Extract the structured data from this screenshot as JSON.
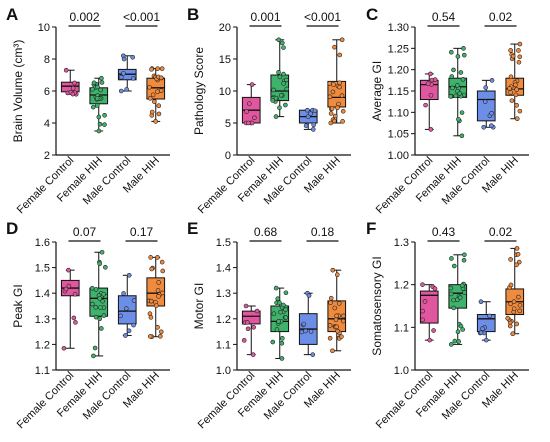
{
  "colors": {
    "female_control": "#e0579f",
    "female_hih": "#3fb26b",
    "male_control": "#6d8ee6",
    "male_hih": "#f08a3c"
  },
  "chart_data": [
    {
      "type": "box",
      "panel": "A",
      "ylabel": "Brain Volume (cm³)",
      "ylim": [
        2,
        10
      ],
      "yticks": [
        "2",
        "4",
        "6",
        "8",
        "10"
      ],
      "yticks_values": [
        2,
        4,
        6,
        8,
        10
      ],
      "categories": [
        "Female Control",
        "Female HIH",
        "Male Control",
        "Male HIH"
      ],
      "boxes": [
        {
          "min": 5.8,
          "q1": 5.95,
          "median": 6.3,
          "q3": 6.55,
          "max": 7.3
        },
        {
          "min": 3.5,
          "q1": 5.2,
          "median": 5.75,
          "q3": 6.2,
          "max": 6.8
        },
        {
          "min": 6.0,
          "q1": 6.7,
          "median": 7.05,
          "q3": 7.35,
          "max": 8.2
        },
        {
          "min": 4.1,
          "q1": 5.5,
          "median": 6.2,
          "q3": 6.8,
          "max": 7.4
        }
      ],
      "annotations": [
        {
          "text": "0.002",
          "between": [
            0,
            1
          ]
        },
        {
          "text": "<0.001",
          "between": [
            2,
            3
          ]
        }
      ]
    },
    {
      "type": "box",
      "panel": "B",
      "ylabel": "Pathology Score",
      "ylim": [
        0,
        20
      ],
      "yticks": [
        "0",
        "5",
        "10",
        "15",
        "20"
      ],
      "yticks_values": [
        0,
        5,
        10,
        15,
        20
      ],
      "categories": [
        "Female Control",
        "Female HIH",
        "Male Control",
        "Male HIH"
      ],
      "boxes": [
        {
          "min": 5,
          "q1": 5,
          "median": 7,
          "q3": 9,
          "max": 11
        },
        {
          "min": 6,
          "q1": 8.5,
          "median": 10,
          "q3": 12.5,
          "max": 18
        },
        {
          "min": 4,
          "q1": 5,
          "median": 6,
          "q3": 7,
          "max": 7
        },
        {
          "min": 5,
          "q1": 7.5,
          "median": 9,
          "q3": 11.5,
          "max": 18
        }
      ],
      "annotations": [
        {
          "text": "0.001",
          "between": [
            0,
            1
          ]
        },
        {
          "text": "<0.001",
          "between": [
            2,
            3
          ]
        }
      ]
    },
    {
      "type": "box",
      "panel": "C",
      "ylabel": "Average GI",
      "ylim": [
        1.0,
        1.3
      ],
      "yticks": [
        "1.00",
        "1.05",
        "1.10",
        "1.15",
        "1.20",
        "1.25",
        "1.30"
      ],
      "yticks_values": [
        1.0,
        1.05,
        1.1,
        1.15,
        1.2,
        1.25,
        1.3
      ],
      "categories": [
        "Female Control",
        "Female HIH",
        "Male Control",
        "Male HIH"
      ],
      "boxes": [
        {
          "min": 1.06,
          "q1": 1.13,
          "median": 1.165,
          "q3": 1.175,
          "max": 1.19
        },
        {
          "min": 1.045,
          "q1": 1.135,
          "median": 1.16,
          "q3": 1.18,
          "max": 1.25
        },
        {
          "min": 1.065,
          "q1": 1.08,
          "median": 1.13,
          "q3": 1.15,
          "max": 1.175
        },
        {
          "min": 1.085,
          "q1": 1.14,
          "median": 1.155,
          "q3": 1.18,
          "max": 1.26
        }
      ],
      "annotations": [
        {
          "text": "0.54",
          "between": [
            0,
            1
          ]
        },
        {
          "text": "0.02",
          "between": [
            2,
            3
          ]
        }
      ]
    },
    {
      "type": "box",
      "panel": "D",
      "ylabel": "Peak GI",
      "ylim": [
        1.1,
        1.6
      ],
      "yticks": [
        "1.1",
        "1.2",
        "1.3",
        "1.4",
        "1.5",
        "1.6"
      ],
      "yticks_values": [
        1.1,
        1.2,
        1.3,
        1.4,
        1.5,
        1.6
      ],
      "categories": [
        "Female Control",
        "Female HIH",
        "Male Control",
        "Male HIH"
      ],
      "boxes": [
        {
          "min": 1.185,
          "q1": 1.39,
          "median": 1.42,
          "q3": 1.45,
          "max": 1.49
        },
        {
          "min": 1.155,
          "q1": 1.31,
          "median": 1.38,
          "q3": 1.42,
          "max": 1.56
        },
        {
          "min": 1.235,
          "q1": 1.28,
          "median": 1.33,
          "q3": 1.39,
          "max": 1.47
        },
        {
          "min": 1.23,
          "q1": 1.35,
          "median": 1.4,
          "q3": 1.46,
          "max": 1.54
        }
      ],
      "annotations": [
        {
          "text": "0.07",
          "between": [
            0,
            1
          ]
        },
        {
          "text": "0.17",
          "between": [
            2,
            3
          ]
        }
      ]
    },
    {
      "type": "box",
      "panel": "E",
      "ylabel": "Motor GI",
      "ylim": [
        1.0,
        1.5
      ],
      "yticks": [
        "1.0",
        "1.1",
        "1.2",
        "1.3",
        "1.4",
        "1.5"
      ],
      "yticks_values": [
        1.0,
        1.1,
        1.2,
        1.3,
        1.4,
        1.5
      ],
      "categories": [
        "Female Control",
        "Female HIH",
        "Male Control",
        "Male HIH"
      ],
      "boxes": [
        {
          "min": 1.06,
          "q1": 1.18,
          "median": 1.21,
          "q3": 1.23,
          "max": 1.25
        },
        {
          "min": 1.045,
          "q1": 1.15,
          "median": 1.19,
          "q3": 1.25,
          "max": 1.32
        },
        {
          "min": 1.06,
          "q1": 1.1,
          "median": 1.16,
          "q3": 1.22,
          "max": 1.3
        },
        {
          "min": 1.075,
          "q1": 1.15,
          "median": 1.2,
          "q3": 1.27,
          "max": 1.39
        }
      ],
      "annotations": [
        {
          "text": "0.68",
          "between": [
            0,
            1
          ]
        },
        {
          "text": "0.18",
          "between": [
            2,
            3
          ]
        }
      ]
    },
    {
      "type": "box",
      "panel": "F",
      "ylabel": "Somatosensory GI",
      "ylim": [
        1.0,
        1.3
      ],
      "yticks": [
        "1.0",
        "1.1",
        "1.2",
        "1.3"
      ],
      "yticks_values": [
        1.0,
        1.1,
        1.2,
        1.3
      ],
      "categories": [
        "Female Control",
        "Female HIH",
        "Male Control",
        "Male HIH"
      ],
      "boxes": [
        {
          "min": 1.07,
          "q1": 1.11,
          "median": 1.175,
          "q3": 1.185,
          "max": 1.2
        },
        {
          "min": 1.06,
          "q1": 1.145,
          "median": 1.18,
          "q3": 1.2,
          "max": 1.27
        },
        {
          "min": 1.07,
          "q1": 1.09,
          "median": 1.12,
          "q3": 1.13,
          "max": 1.16
        },
        {
          "min": 1.085,
          "q1": 1.13,
          "median": 1.16,
          "q3": 1.19,
          "max": 1.285
        }
      ],
      "annotations": [
        {
          "text": "0.43",
          "between": [
            0,
            1
          ]
        },
        {
          "text": "0.02",
          "between": [
            2,
            3
          ]
        }
      ]
    }
  ]
}
